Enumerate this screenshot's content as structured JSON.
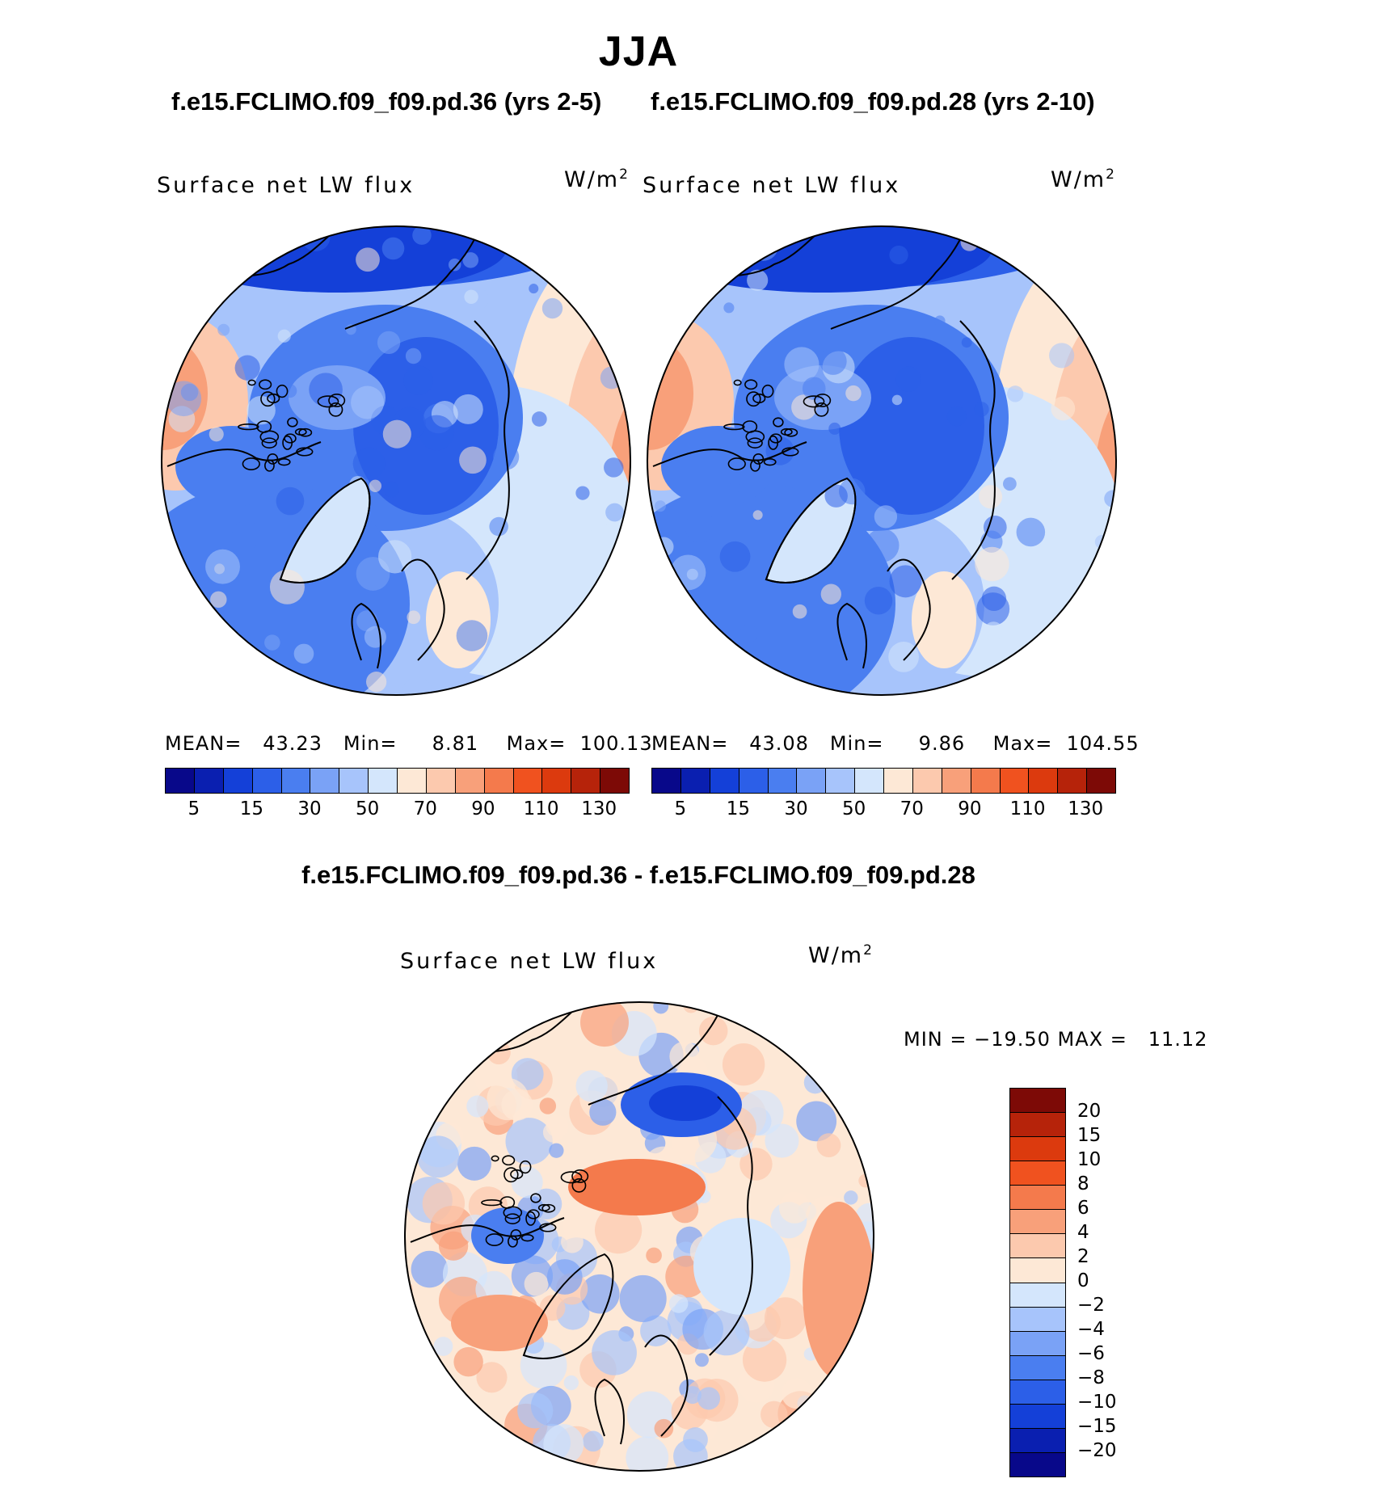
{
  "figure": {
    "title": "JJA",
    "case1_label": "f.e15.FCLIMO.f09_f09.pd.36 (yrs 2-5)",
    "case2_label": "f.e15.FCLIMO.f09_f09.pd.28 (yrs 2-10)",
    "diff_title": "f.e15.FCLIMO.f09_f09.pd.36 - f.e15.FCLIMO.f09_f09.pd.28"
  },
  "panels": [
    {
      "variable": "Surface net LW flux",
      "units": "W/m",
      "units_exp": "2",
      "stats": "MEAN=   43.23   Min=     8.81    Max=  100.13",
      "mean": 43.23,
      "min": 8.81,
      "max": 100.13
    },
    {
      "variable": "Surface net LW flux",
      "units": "W/m",
      "units_exp": "2",
      "stats": "MEAN=   43.08   Min=     9.86    Max=  104.55",
      "mean": 43.08,
      "min": 9.86,
      "max": 104.55
    },
    {
      "variable": "Surface net LW flux",
      "units": "W/m",
      "units_exp": "2",
      "stats": "MIN = −19.50 MAX =   11.12",
      "min": -19.5,
      "max": 11.12
    }
  ],
  "colorbar_abs": {
    "colors": [
      "#08088a",
      "#0a1fb0",
      "#1440d8",
      "#2c5fe8",
      "#4a7ef0",
      "#7aa2f6",
      "#a7c4fb",
      "#d4e6fc",
      "#fde8d6",
      "#fcc9ae",
      "#f8a07a",
      "#f47a4c",
      "#f0521f",
      "#dc3a0e",
      "#b6230a",
      "#7d0a06"
    ],
    "ticks": [
      "5",
      "15",
      "30",
      "50",
      "70",
      "90",
      "110",
      "130"
    ],
    "tick_index": [
      1,
      3,
      5,
      7,
      9,
      11,
      13,
      15
    ]
  },
  "colorbar_diff": {
    "colors": [
      "#08088a",
      "#0a1fb0",
      "#1440d8",
      "#2c5fe8",
      "#4a7ef0",
      "#7aa2f6",
      "#a7c4fb",
      "#d4e6fc",
      "#fde8d6",
      "#fcc9ae",
      "#f8a07a",
      "#f47a4c",
      "#f0521f",
      "#dc3a0e",
      "#b6230a",
      "#7d0a06"
    ],
    "ticks": [
      "20",
      "15",
      "10",
      "8",
      "6",
      "4",
      "2",
      "0",
      "−2",
      "−4",
      "−6",
      "−8",
      "−10",
      "−15",
      "−20"
    ]
  }
}
